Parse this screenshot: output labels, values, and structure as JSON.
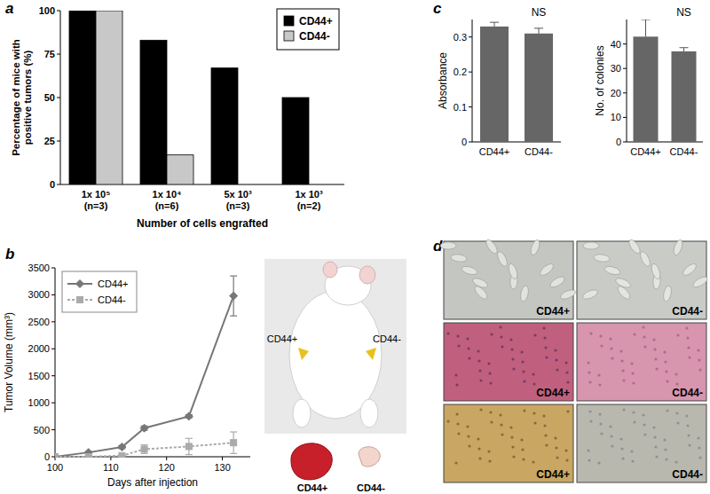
{
  "chart_data": [
    {
      "type": "bar",
      "categories": [
        "1x 10⁵\n(n=3)",
        "1x 10⁴\n(n=6)",
        "5x 10³\n(n=3)",
        "1x 10³\n(n=2)"
      ],
      "series": [
        {
          "name": "CD44+",
          "color": "#000000",
          "values": [
            100,
            83,
            67,
            50
          ]
        },
        {
          "name": "CD44-",
          "color": "#c8c8c8",
          "values": [
            100,
            17,
            0,
            0
          ]
        }
      ],
      "ylim": [
        0,
        100
      ],
      "yticks": [
        0,
        25,
        50,
        75,
        100
      ],
      "ylabel": "Percentage of mice with\npositive tumors (%)",
      "xlabel": "Number of cells engrafted",
      "legend": "upper right"
    },
    {
      "type": "line",
      "x": [
        100,
        106,
        112,
        116,
        124,
        132
      ],
      "series": [
        {
          "name": "CD44+",
          "color": "#777777",
          "marker": "diamond",
          "line_style": "solid",
          "values": [
            0,
            80,
            180,
            530,
            750,
            2980
          ],
          "errors": [
            0,
            10,
            30,
            40,
            30,
            370
          ]
        },
        {
          "name": "CD44-",
          "color": "#aaaaaa",
          "marker": "square",
          "line_style": "dotted",
          "values": [
            0,
            0,
            20,
            140,
            190,
            260
          ],
          "errors": [
            0,
            0,
            0,
            80,
            150,
            200
          ]
        }
      ],
      "xlim": [
        100,
        135
      ],
      "xticks": [
        100,
        110,
        120,
        130
      ],
      "ylim": [
        0,
        3500
      ],
      "yticks": [
        0,
        500,
        1000,
        1500,
        2000,
        2500,
        3000,
        3500
      ],
      "ylabel": "Tumor Volume (mm³)",
      "xlabel": "Days after injection",
      "legend": "upper left"
    },
    {
      "type": "bar",
      "categories": [
        "CD44+",
        "CD44-"
      ],
      "values": [
        0.33,
        0.31
      ],
      "errors": [
        0.012,
        0.015
      ],
      "color": "#666666",
      "ylim": [
        0,
        0.35
      ],
      "yticks": [
        0,
        0.1,
        0.2,
        0.3
      ],
      "ylabel": "Absorbance",
      "annotation": "NS"
    },
    {
      "type": "bar",
      "categories": [
        "CD44+",
        "CD44-"
      ],
      "values": [
        43,
        37
      ],
      "errors": [
        7,
        1.5
      ],
      "color": "#666666",
      "ylim": [
        0,
        50
      ],
      "yticks": [
        0,
        10,
        20,
        30,
        40
      ],
      "ylabel": "No. of colonies",
      "annotation": "NS"
    }
  ],
  "panels": [
    "a",
    "b",
    "c",
    "d"
  ],
  "panel_b_photo": {
    "mouse_labels": [
      "CD44+",
      "CD44-"
    ],
    "tumor_labels": [
      "CD44+",
      "CD44-"
    ]
  },
  "panel_d": {
    "labels": [
      [
        "CD44+",
        "CD44-"
      ],
      [
        "CD44+",
        "CD44-"
      ],
      [
        "CD44+",
        "CD44-"
      ]
    ]
  }
}
